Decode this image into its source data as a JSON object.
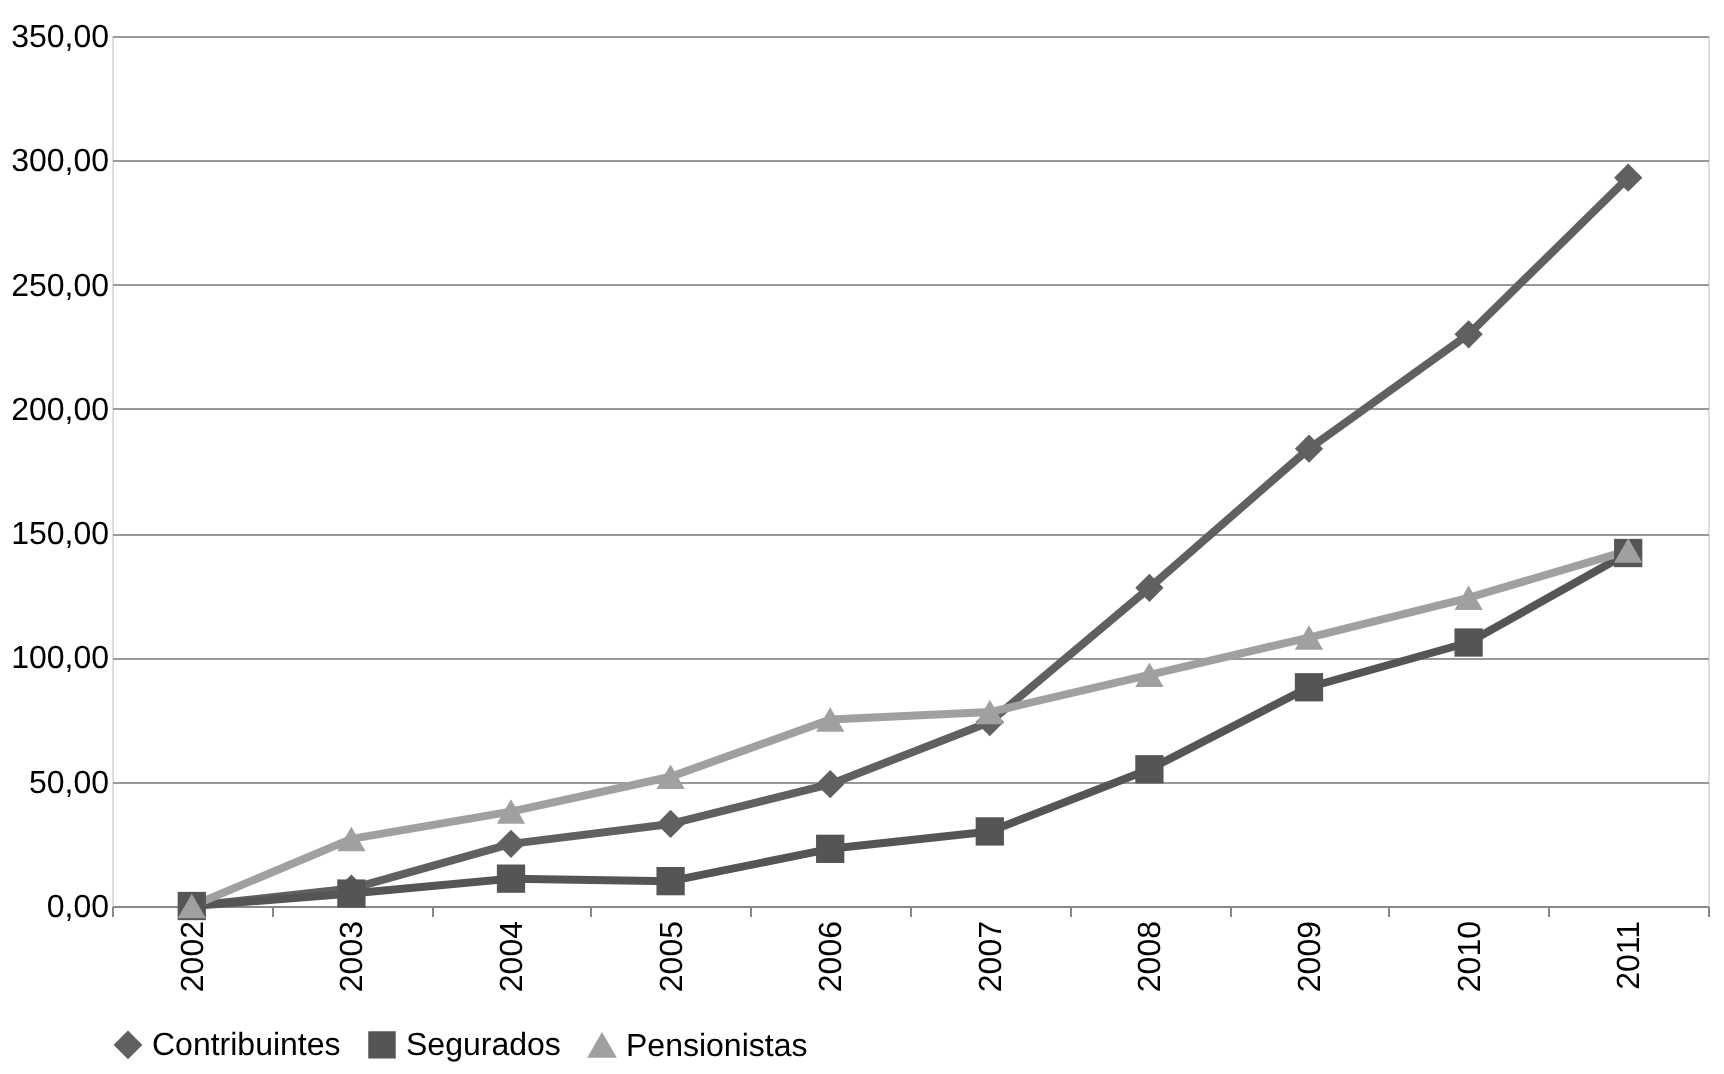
{
  "chart_data": {
    "type": "line",
    "categories": [
      "2002",
      "2003",
      "2004",
      "2005",
      "2006",
      "2007",
      "2008",
      "2009",
      "2010",
      "2011"
    ],
    "series": [
      {
        "name": "Contribuintes",
        "color": "#606060",
        "marker": "diamond",
        "values": [
          0,
          7,
          25,
          33,
          49,
          74,
          128,
          184,
          230,
          293
        ]
      },
      {
        "name": "Segurados",
        "color": "#555555",
        "marker": "square",
        "values": [
          0,
          5,
          11,
          10,
          23,
          30,
          55,
          88,
          106,
          142
        ]
      },
      {
        "name": "Pensionistas",
        "color": "#a0a0a0",
        "marker": "triangle",
        "values": [
          0,
          27,
          38,
          52,
          75,
          78,
          93,
          108,
          124,
          143
        ]
      }
    ],
    "ylim": [
      0,
      350
    ],
    "yticks": [
      {
        "value": 0,
        "label": "0,00"
      },
      {
        "value": 50,
        "label": "50,00"
      },
      {
        "value": 100,
        "label": "100,00"
      },
      {
        "value": 150,
        "label": "150,00"
      },
      {
        "value": 200,
        "label": "200,00"
      },
      {
        "value": 250,
        "label": "250,00"
      },
      {
        "value": 300,
        "label": "300,00"
      },
      {
        "value": 350,
        "label": "350,00"
      }
    ],
    "grid": "y",
    "legend": "bottom",
    "line_style": "solid"
  }
}
